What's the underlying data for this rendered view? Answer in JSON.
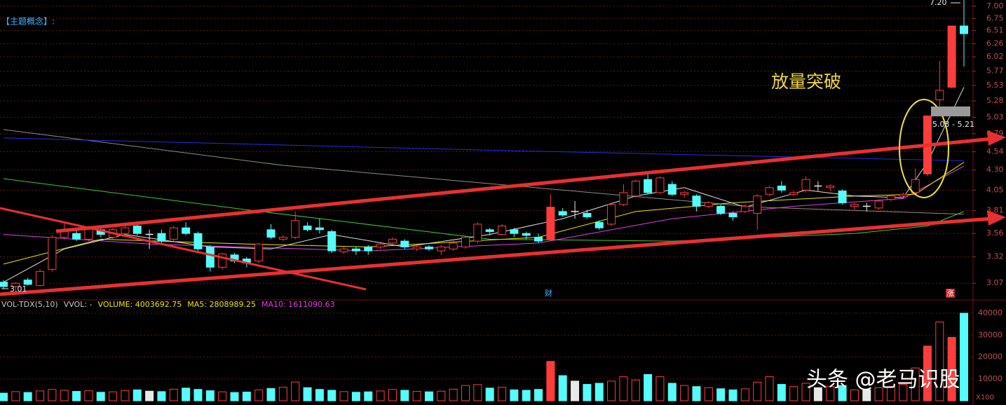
{
  "chart_data": {
    "type": "candlestick",
    "header": "【主题概念】:",
    "annotation": "放量突破",
    "range_label": "5.03 - 5.21",
    "high_label": "7.20",
    "low_label": "3.01",
    "marker_left": "财",
    "marker_right": "涨",
    "watermark": "头条 @老马识股",
    "log": true,
    "grid": true,
    "ylim": [
      2.94,
      7.13
    ],
    "yticks": [
      3.07,
      3.32,
      3.56,
      3.81,
      4.05,
      {
        "value": 4.3,
        "label": "4.30"
      },
      4.54,
      4.79,
      5.03,
      5.28,
      5.53,
      5.77,
      6.02,
      6.26,
      6.51,
      6.75,
      {
        "value": 7,
        "label": "7.00"
      }
    ],
    "up_color": "#ff3c3c",
    "down_color": "#54fcfc",
    "cross_color": "#e8e8e8",
    "filled_up": [
      45,
      76,
      78
    ],
    "candles": [
      [
        3.08,
        3.1,
        3.02,
        3.04
      ],
      [
        3.04,
        3.08,
        3.01,
        3.07
      ],
      [
        3.1,
        3.12,
        3.05,
        3.06
      ],
      [
        3.05,
        3.2,
        3.04,
        3.18
      ],
      [
        3.2,
        3.54,
        3.18,
        3.52
      ],
      [
        3.52,
        3.67,
        3.5,
        3.58
      ],
      [
        3.56,
        3.62,
        3.48,
        3.5
      ],
      [
        3.5,
        3.64,
        3.48,
        3.62
      ],
      [
        3.6,
        3.64,
        3.52,
        3.55
      ],
      [
        3.52,
        3.62,
        3.5,
        3.6
      ],
      [
        3.56,
        3.65,
        3.54,
        3.62
      ],
      [
        3.64,
        3.68,
        3.54,
        3.56
      ],
      [
        3.55,
        3.6,
        3.4,
        3.55
      ],
      [
        3.56,
        3.6,
        3.46,
        3.48
      ],
      [
        3.5,
        3.64,
        3.48,
        3.62
      ],
      [
        3.62,
        3.68,
        3.54,
        3.56
      ],
      [
        3.56,
        3.58,
        3.38,
        3.4
      ],
      [
        3.42,
        3.44,
        3.18,
        3.22
      ],
      [
        3.22,
        3.36,
        3.2,
        3.35
      ],
      [
        3.34,
        3.36,
        3.26,
        3.28
      ],
      [
        3.3,
        3.32,
        3.22,
        3.26
      ],
      [
        3.28,
        3.46,
        3.26,
        3.45
      ],
      [
        3.6,
        3.66,
        3.5,
        3.52
      ],
      [
        3.5,
        3.54,
        3.48,
        3.52
      ],
      [
        3.52,
        3.8,
        3.5,
        3.7
      ],
      [
        3.64,
        3.68,
        3.58,
        3.6
      ],
      [
        3.62,
        3.72,
        3.56,
        3.6
      ],
      [
        3.58,
        3.6,
        3.36,
        3.38
      ],
      [
        3.37,
        3.42,
        3.35,
        3.4
      ],
      [
        3.4,
        3.42,
        3.34,
        3.38
      ],
      [
        3.42,
        3.44,
        3.34,
        3.38
      ],
      [
        3.42,
        3.46,
        3.4,
        3.45
      ],
      [
        3.46,
        3.52,
        3.44,
        3.5
      ],
      [
        3.48,
        3.5,
        3.4,
        3.42
      ],
      [
        3.4,
        3.44,
        3.38,
        3.42
      ],
      [
        3.42,
        3.44,
        3.38,
        3.4
      ],
      [
        3.38,
        3.44,
        3.34,
        3.42
      ],
      [
        3.4,
        3.5,
        3.38,
        3.46
      ],
      [
        3.42,
        3.54,
        3.4,
        3.52
      ],
      [
        3.48,
        3.68,
        3.46,
        3.66
      ],
      [
        3.6,
        3.62,
        3.54,
        3.58
      ],
      [
        3.55,
        3.66,
        3.54,
        3.64
      ],
      [
        3.6,
        3.62,
        3.52,
        3.56
      ],
      [
        3.56,
        3.58,
        3.5,
        3.54
      ],
      [
        3.52,
        3.56,
        3.46,
        3.48
      ],
      [
        3.5,
        4.0,
        3.48,
        3.85
      ],
      [
        3.8,
        3.84,
        3.74,
        3.76
      ],
      [
        3.8,
        3.92,
        3.72,
        3.8
      ],
      [
        3.78,
        3.82,
        3.72,
        3.74
      ],
      [
        3.68,
        3.7,
        3.6,
        3.62
      ],
      [
        3.66,
        3.9,
        3.64,
        3.88
      ],
      [
        3.88,
        4.12,
        3.86,
        4.02
      ],
      [
        3.98,
        4.18,
        3.96,
        4.16
      ],
      [
        4.18,
        4.28,
        4.0,
        4.02
      ],
      [
        4.02,
        4.22,
        4.0,
        4.2
      ],
      [
        4.12,
        4.16,
        3.98,
        4.0
      ],
      [
        4.0,
        4.04,
        3.96,
        4.02
      ],
      [
        3.98,
        4.0,
        3.8,
        3.86
      ],
      [
        3.86,
        3.92,
        3.84,
        3.9
      ],
      [
        3.86,
        3.88,
        3.76,
        3.78
      ],
      [
        3.78,
        3.8,
        3.7,
        3.74
      ],
      [
        3.8,
        3.88,
        3.78,
        3.86
      ],
      [
        3.78,
        4.0,
        3.6,
        3.98
      ],
      [
        4.0,
        4.1,
        3.98,
        4.08
      ],
      [
        4.1,
        4.16,
        4.02,
        4.05
      ],
      [
        4.0,
        4.04,
        3.98,
        4.02
      ],
      [
        4.05,
        4.22,
        4.02,
        4.18
      ],
      [
        4.1,
        4.16,
        4.04,
        4.1
      ],
      [
        4.08,
        4.12,
        4.04,
        4.1
      ],
      [
        4.04,
        4.06,
        3.88,
        3.9
      ],
      [
        3.86,
        3.9,
        3.82,
        3.88
      ],
      [
        3.86,
        3.9,
        3.8,
        3.86
      ],
      [
        3.84,
        3.94,
        3.82,
        3.92
      ],
      [
        3.94,
        4.0,
        3.92,
        3.98
      ],
      [
        3.98,
        4.02,
        3.96,
        4.0
      ],
      [
        4.02,
        4.32,
        4.0,
        4.18
      ],
      [
        4.25,
        5.05,
        4.22,
        5.05
      ],
      [
        5.3,
        5.95,
        5.2,
        5.45
      ],
      [
        5.5,
        6.6,
        5.48,
        6.6
      ],
      [
        6.6,
        7.2,
        5.85,
        6.45
      ]
    ],
    "ma_lines": [
      {
        "color": "#8c8c8c",
        "x": [
          0,
          23,
          46,
          62,
          79
        ],
        "values": [
          4.85,
          4.36,
          4.05,
          3.85,
          3.77
        ]
      },
      {
        "color": "#2a2ae0",
        "x": [
          0,
          40,
          79
        ],
        "values": [
          4.73,
          4.56,
          4.42
        ]
      },
      {
        "color": "#3cc83c",
        "x": [
          0,
          20,
          40,
          55,
          70,
          76,
          79
        ],
        "values": [
          4.19,
          3.82,
          3.5,
          3.48,
          3.56,
          3.64,
          3.8
        ]
      },
      {
        "color": "#e040e0",
        "x": [
          0,
          12,
          30,
          44,
          55,
          65,
          74,
          79
        ],
        "values": [
          3.55,
          3.45,
          3.38,
          3.46,
          3.72,
          3.86,
          3.95,
          4.35
        ]
      },
      {
        "color": "#e8e800",
        "x": [
          0,
          8,
          20,
          30,
          44,
          52,
          60,
          70,
          75,
          79
        ],
        "values": [
          3.25,
          3.5,
          3.45,
          3.42,
          3.52,
          3.8,
          3.9,
          3.98,
          4.0,
          4.4
        ]
      },
      {
        "color": "#e0e0e0",
        "x": [
          0,
          5,
          10,
          17,
          22,
          27,
          33,
          40,
          46,
          52,
          56,
          61,
          66,
          70,
          74,
          76,
          79
        ],
        "values": [
          3.08,
          3.4,
          3.55,
          3.42,
          3.4,
          3.55,
          3.42,
          3.55,
          3.72,
          3.98,
          4.08,
          3.85,
          4.05,
          3.98,
          3.96,
          4.4,
          5.5
        ]
      }
    ],
    "volume": {
      "legend": [
        "VOL-TDX(5,10)",
        "VVOL: -",
        "VOLUME: 4003692.75",
        "MA5: 2808989.25",
        "MA10: 1611090.63"
      ],
      "legend_colors": [
        "#c8c8c8",
        "#c8c8c8",
        "#e8e800",
        "#e8e800",
        "#e040e0"
      ],
      "unit_label": "X100",
      "ylim": [
        0,
        43200
      ],
      "yticks": [
        10000,
        20000,
        30000,
        40000
      ],
      "values": [
        3500,
        4200,
        3800,
        4500,
        5200,
        4800,
        4300,
        4600,
        3900,
        4100,
        4700,
        5000,
        4400,
        4200,
        5300,
        5800,
        5200,
        4600,
        4100,
        3800,
        4000,
        5000,
        5600,
        6200,
        8600,
        6000,
        5200,
        4800,
        4200,
        3900,
        4100,
        4500,
        5200,
        4800,
        4300,
        4100,
        4400,
        5300,
        7000,
        7400,
        5800,
        6200,
        5000,
        4800,
        5200,
        18000,
        11500,
        9000,
        7500,
        8000,
        9000,
        11000,
        9500,
        12000,
        11000,
        8000,
        7000,
        6500,
        6000,
        5500,
        5000,
        5500,
        8500,
        11000,
        7500,
        6500,
        8000,
        6000,
        6500,
        7000,
        5000,
        5000,
        6000,
        6500,
        7500,
        15000,
        25000,
        36000,
        29000,
        40000
      ]
    }
  }
}
